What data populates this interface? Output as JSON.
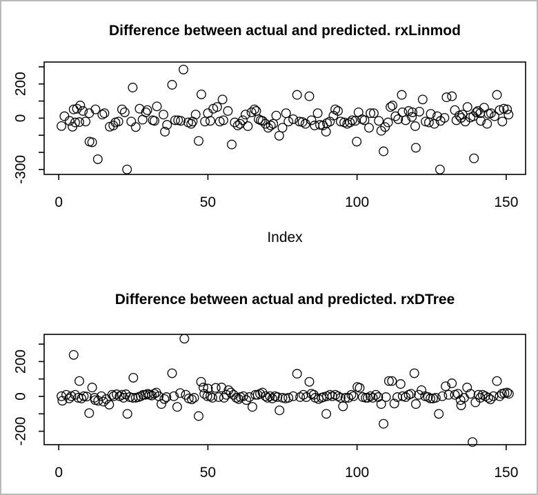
{
  "window": {
    "background": "#ffffff",
    "border_color": "#b9b9b9",
    "foreground": "#000000"
  },
  "chart_data": [
    {
      "type": "scatter",
      "title": "Difference between actual and predicted. rxLinmod",
      "xlabel": "Index",
      "ylabel": "",
      "marker": "open-circle",
      "grid": false,
      "legend": false,
      "xlim": [
        -4.9,
        156.5
      ],
      "ylim": [
        -329,
        328
      ],
      "xticks": [
        {
          "value": 0,
          "label": "0"
        },
        {
          "value": 50,
          "label": "50"
        },
        {
          "value": 100,
          "label": "100"
        },
        {
          "value": 150,
          "label": "150"
        }
      ],
      "yticks": [
        {
          "value": 300,
          "label": ""
        },
        {
          "value": 200,
          "label": "200"
        },
        {
          "value": 100,
          "label": ""
        },
        {
          "value": 0,
          "label": "0"
        },
        {
          "value": -100,
          "label": ""
        },
        {
          "value": -200,
          "label": ""
        },
        {
          "value": -300,
          "label": "-300"
        }
      ],
      "points": [
        [
          0.9,
          -46
        ],
        [
          1.9,
          11
        ],
        [
          3.6,
          -16
        ],
        [
          4.6,
          -50
        ],
        [
          5.0,
          51
        ],
        [
          5.5,
          -25
        ],
        [
          6.1,
          55
        ],
        [
          6.9,
          -23
        ],
        [
          7.2,
          74
        ],
        [
          8.1,
          42
        ],
        [
          9.0,
          -20
        ],
        [
          10.2,
          29
        ],
        [
          10.3,
          -137
        ],
        [
          11.2,
          -141
        ],
        [
          12.3,
          51
        ],
        [
          13.1,
          -240
        ],
        [
          14.6,
          21
        ],
        [
          15.3,
          29
        ],
        [
          17.1,
          -50
        ],
        [
          18.3,
          -43
        ],
        [
          19.0,
          -25
        ],
        [
          20.0,
          -20
        ],
        [
          21.2,
          51
        ],
        [
          22.1,
          34
        ],
        [
          22.9,
          -300
        ],
        [
          24.3,
          -20
        ],
        [
          24.8,
          179
        ],
        [
          25.8,
          -52
        ],
        [
          27.1,
          55
        ],
        [
          28.1,
          -9
        ],
        [
          29.2,
          34
        ],
        [
          29.7,
          47
        ],
        [
          31.5,
          -12
        ],
        [
          32.1,
          -16
        ],
        [
          32.9,
          69
        ],
        [
          35.1,
          21
        ],
        [
          35.6,
          -79
        ],
        [
          36.3,
          -39
        ],
        [
          38.0,
          195
        ],
        [
          39.0,
          -12
        ],
        [
          40.0,
          -12
        ],
        [
          40.9,
          -16
        ],
        [
          41.8,
          284
        ],
        [
          43.4,
          -25
        ],
        [
          44.4,
          -33
        ],
        [
          44.9,
          -20
        ],
        [
          45.9,
          21
        ],
        [
          46.9,
          -133
        ],
        [
          47.8,
          139
        ],
        [
          49.0,
          -20
        ],
        [
          50.0,
          29
        ],
        [
          50.8,
          -16
        ],
        [
          51.8,
          55
        ],
        [
          53.1,
          65
        ],
        [
          54.0,
          -20
        ],
        [
          54.9,
          109
        ],
        [
          55.2,
          -12
        ],
        [
          56.7,
          42
        ],
        [
          58.0,
          -154
        ],
        [
          59.0,
          -25
        ],
        [
          60.0,
          -43
        ],
        [
          60.8,
          -33
        ],
        [
          61.7,
          -12
        ],
        [
          62.6,
          21
        ],
        [
          63.4,
          -47
        ],
        [
          64.6,
          34
        ],
        [
          65.6,
          51
        ],
        [
          66.2,
          42
        ],
        [
          67.0,
          -6
        ],
        [
          67.7,
          -12
        ],
        [
          68.3,
          -16
        ],
        [
          69.3,
          -33
        ],
        [
          70.2,
          -56
        ],
        [
          71.1,
          -43
        ],
        [
          71.9,
          -33
        ],
        [
          72.9,
          15
        ],
        [
          73.9,
          -103
        ],
        [
          75.0,
          -56
        ],
        [
          76.2,
          29
        ],
        [
          77.0,
          -20
        ],
        [
          78.6,
          -6
        ],
        [
          79.9,
          136
        ],
        [
          80.7,
          -20
        ],
        [
          81.7,
          -23
        ],
        [
          82.7,
          -33
        ],
        [
          84.0,
          128
        ],
        [
          84.7,
          -12
        ],
        [
          85.8,
          -43
        ],
        [
          86.8,
          29
        ],
        [
          87.6,
          -39
        ],
        [
          88.6,
          -43
        ],
        [
          89.6,
          -79
        ],
        [
          89.9,
          -29
        ],
        [
          90.9,
          -20
        ],
        [
          92.1,
          15
        ],
        [
          92.7,
          51
        ],
        [
          93.6,
          42
        ],
        [
          94.5,
          -20
        ],
        [
          95.7,
          -25
        ],
        [
          96.7,
          -33
        ],
        [
          97.6,
          -25
        ],
        [
          98.4,
          -12
        ],
        [
          99.4,
          -16
        ],
        [
          99.9,
          -137
        ],
        [
          100.5,
          34
        ],
        [
          101.7,
          -6
        ],
        [
          102.5,
          -12
        ],
        [
          104.0,
          -56
        ],
        [
          104.5,
          29
        ],
        [
          105.6,
          29
        ],
        [
          107.3,
          -16
        ],
        [
          108.1,
          -74
        ],
        [
          108.9,
          -194
        ],
        [
          109.4,
          -52
        ],
        [
          110.4,
          -25
        ],
        [
          111.2,
          65
        ],
        [
          111.9,
          74
        ],
        [
          112.9,
          11
        ],
        [
          113.8,
          -6
        ],
        [
          115.0,
          136
        ],
        [
          115.2,
          34
        ],
        [
          116.3,
          -12
        ],
        [
          117.3,
          42
        ],
        [
          118.4,
          7
        ],
        [
          118.6,
          34
        ],
        [
          119.5,
          -47
        ],
        [
          119.7,
          -173
        ],
        [
          120.9,
          38
        ],
        [
          122.0,
          109
        ],
        [
          123.0,
          -20
        ],
        [
          124.1,
          -25
        ],
        [
          124.7,
          25
        ],
        [
          125.9,
          -33
        ],
        [
          126.9,
          11
        ],
        [
          127.8,
          -300
        ],
        [
          128.0,
          -16
        ],
        [
          129.3,
          2
        ],
        [
          130.0,
          122
        ],
        [
          131.8,
          128
        ],
        [
          132.8,
          47
        ],
        [
          133.3,
          -12
        ],
        [
          134.3,
          15
        ],
        [
          134.9,
          2
        ],
        [
          135.4,
          21
        ],
        [
          136.3,
          -20
        ],
        [
          137.0,
          65
        ],
        [
          138.0,
          4
        ],
        [
          139.0,
          11
        ],
        [
          139.2,
          -235
        ],
        [
          140.0,
          34
        ],
        [
          140.5,
          42
        ],
        [
          141.3,
          29
        ],
        [
          141.5,
          -16
        ],
        [
          142.6,
          61
        ],
        [
          143.6,
          -33
        ],
        [
          144.1,
          25
        ],
        [
          144.9,
          29
        ],
        [
          146.1,
          11
        ],
        [
          146.9,
          136
        ],
        [
          147.8,
          47
        ],
        [
          148.7,
          -20
        ],
        [
          149.2,
          55
        ],
        [
          150.3,
          51
        ],
        [
          150.8,
          21
        ]
      ]
    },
    {
      "type": "scatter",
      "title": "Difference between actual and predicted. rxDTree",
      "xlabel": "",
      "ylabel": "",
      "marker": "open-circle",
      "grid": false,
      "legend": false,
      "xlim": [
        -4.9,
        156.5
      ],
      "ylim": [
        -277,
        356
      ],
      "xticks": [
        {
          "value": 0,
          "label": "0"
        },
        {
          "value": 50,
          "label": "50"
        },
        {
          "value": 100,
          "label": "100"
        },
        {
          "value": 150,
          "label": "150"
        }
      ],
      "yticks": [
        {
          "value": 300,
          "label": ""
        },
        {
          "value": 200,
          "label": "200"
        },
        {
          "value": 100,
          "label": ""
        },
        {
          "value": 0,
          "label": "0"
        },
        {
          "value": -100,
          "label": ""
        },
        {
          "value": -200,
          "label": "-200"
        }
      ],
      "points": [
        [
          0.9,
          1
        ],
        [
          1.2,
          -25
        ],
        [
          2.5,
          9
        ],
        [
          3.5,
          -12
        ],
        [
          4.2,
          1
        ],
        [
          5.0,
          238
        ],
        [
          5.5,
          9
        ],
        [
          6.5,
          -8
        ],
        [
          6.9,
          88
        ],
        [
          7.6,
          -12
        ],
        [
          8.4,
          1
        ],
        [
          9.4,
          -1
        ],
        [
          10.2,
          -96
        ],
        [
          11.2,
          51
        ],
        [
          12.0,
          -8
        ],
        [
          12.2,
          -21
        ],
        [
          13.2,
          -25
        ],
        [
          14.3,
          1
        ],
        [
          15.0,
          -30
        ],
        [
          15.9,
          -15
        ],
        [
          16.9,
          -47
        ],
        [
          17.9,
          9
        ],
        [
          18.4,
          1
        ],
        [
          19.4,
          12
        ],
        [
          20.4,
          1
        ],
        [
          21.2,
          9
        ],
        [
          21.7,
          -8
        ],
        [
          22.5,
          12
        ],
        [
          23.0,
          -100
        ],
        [
          23.8,
          -4
        ],
        [
          24.8,
          -8
        ],
        [
          25.0,
          107
        ],
        [
          25.8,
          -8
        ],
        [
          26.7,
          -4
        ],
        [
          27.5,
          1
        ],
        [
          28.3,
          9
        ],
        [
          29.0,
          9
        ],
        [
          29.8,
          15
        ],
        [
          30.4,
          9
        ],
        [
          31.2,
          5
        ],
        [
          32.0,
          15
        ],
        [
          32.7,
          22
        ],
        [
          33.5,
          1
        ],
        [
          34.4,
          -44
        ],
        [
          35.4,
          -15
        ],
        [
          36.1,
          -4
        ],
        [
          38.0,
          133
        ],
        [
          38.6,
          1
        ],
        [
          39.7,
          -60
        ],
        [
          40.7,
          19
        ],
        [
          42.1,
          331
        ],
        [
          42.6,
          9
        ],
        [
          43.6,
          -12
        ],
        [
          44.6,
          -17
        ],
        [
          45.4,
          -8
        ],
        [
          46.9,
          -113
        ],
        [
          47.7,
          84
        ],
        [
          48.5,
          51
        ],
        [
          48.8,
          15
        ],
        [
          49.8,
          1
        ],
        [
          50.0,
          45
        ],
        [
          50.8,
          1
        ],
        [
          51.5,
          -8
        ],
        [
          52.6,
          49
        ],
        [
          53.6,
          -4
        ],
        [
          54.6,
          51
        ],
        [
          55.4,
          -8
        ],
        [
          56.2,
          9
        ],
        [
          56.9,
          36
        ],
        [
          57.7,
          22
        ],
        [
          58.6,
          9
        ],
        [
          59.5,
          -8
        ],
        [
          60.3,
          -15
        ],
        [
          60.9,
          -4
        ],
        [
          61.9,
          1
        ],
        [
          62.9,
          -21
        ],
        [
          63.9,
          -4
        ],
        [
          64.9,
          -60
        ],
        [
          65.9,
          9
        ],
        [
          66.7,
          9
        ],
        [
          67.5,
          15
        ],
        [
          68.3,
          22
        ],
        [
          69.3,
          1
        ],
        [
          70.0,
          -8
        ],
        [
          70.8,
          1
        ],
        [
          71.6,
          -12
        ],
        [
          72.5,
          1
        ],
        [
          73.3,
          -4
        ],
        [
          74.0,
          -80
        ],
        [
          75.0,
          -8
        ],
        [
          76.0,
          -12
        ],
        [
          77.0,
          -8
        ],
        [
          78.6,
          1
        ],
        [
          79.9,
          130
        ],
        [
          80.9,
          -4
        ],
        [
          82.0,
          9
        ],
        [
          83.0,
          -4
        ],
        [
          84.0,
          84
        ],
        [
          84.7,
          15
        ],
        [
          85.5,
          9
        ],
        [
          86.0,
          -8
        ],
        [
          87.1,
          -15
        ],
        [
          88.1,
          -8
        ],
        [
          88.8,
          -4
        ],
        [
          89.7,
          -100
        ],
        [
          89.9,
          1
        ],
        [
          90.9,
          9
        ],
        [
          91.7,
          1
        ],
        [
          92.7,
          9
        ],
        [
          93.6,
          1
        ],
        [
          94.5,
          -8
        ],
        [
          95.3,
          -57
        ],
        [
          96.1,
          -8
        ],
        [
          97.1,
          -8
        ],
        [
          98.1,
          9
        ],
        [
          98.8,
          1
        ],
        [
          100.1,
          54
        ],
        [
          100.9,
          49
        ],
        [
          101.9,
          -4
        ],
        [
          102.9,
          -8
        ],
        [
          103.6,
          -8
        ],
        [
          104.5,
          1
        ],
        [
          105.3,
          -8
        ],
        [
          106.3,
          9
        ],
        [
          107.1,
          -4
        ],
        [
          108.1,
          -44
        ],
        [
          108.9,
          -157
        ],
        [
          109.7,
          -4
        ],
        [
          110.7,
          88
        ],
        [
          111.7,
          88
        ],
        [
          112.5,
          -41
        ],
        [
          113.5,
          -4
        ],
        [
          114.6,
          71
        ],
        [
          115.3,
          1
        ],
        [
          116.3,
          -4
        ],
        [
          117.3,
          9
        ],
        [
          118.1,
          15
        ],
        [
          119.2,
          133
        ],
        [
          119.7,
          -44
        ],
        [
          120.7,
          9
        ],
        [
          121.6,
          36
        ],
        [
          122.8,
          1
        ],
        [
          123.8,
          -4
        ],
        [
          124.6,
          -12
        ],
        [
          125.5,
          -12
        ],
        [
          126.4,
          -8
        ],
        [
          127.4,
          -100
        ],
        [
          128.6,
          1
        ],
        [
          129.7,
          58
        ],
        [
          130.7,
          9
        ],
        [
          131.8,
          75
        ],
        [
          132.8,
          9
        ],
        [
          133.8,
          15
        ],
        [
          134.7,
          -21
        ],
        [
          134.9,
          -51
        ],
        [
          135.9,
          -8
        ],
        [
          136.9,
          51
        ],
        [
          138.0,
          15
        ],
        [
          138.7,
          -262
        ],
        [
          139.7,
          -34
        ],
        [
          140.7,
          9
        ],
        [
          141.3,
          -8
        ],
        [
          142.1,
          9
        ],
        [
          143.0,
          1
        ],
        [
          144.0,
          -8
        ],
        [
          144.7,
          -17
        ],
        [
          145.7,
          1
        ],
        [
          146.9,
          88
        ],
        [
          147.8,
          1
        ],
        [
          148.6,
          15
        ],
        [
          149.4,
          19
        ],
        [
          150.3,
          22
        ],
        [
          150.9,
          15
        ]
      ]
    }
  ]
}
